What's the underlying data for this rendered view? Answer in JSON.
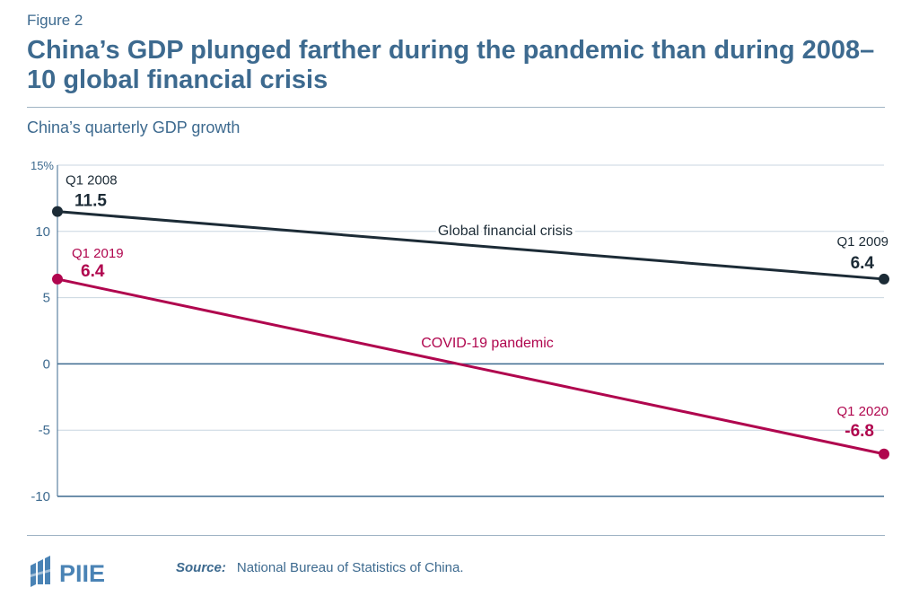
{
  "header": {
    "figure_label": "Figure 2",
    "title": "China’s GDP plunged farther during the pandemic than during 2008–10 global financial crisis",
    "subtitle": "China’s quarterly GDP growth"
  },
  "footer": {
    "logo_text": "PIIE",
    "source_label": "Source:",
    "source_text": "National Bureau of Statistics of China."
  },
  "colors": {
    "gfc": "#1c2b36",
    "covid": "#b0064e",
    "axis": "#3d6a8f",
    "grid": "#c9d6e0"
  },
  "chart_data": {
    "type": "line",
    "ylim": [
      -10,
      15
    ],
    "y_ticks": [
      "15%",
      "10",
      "5",
      "0",
      "-5",
      "-10"
    ],
    "y_tick_values": [
      15,
      10,
      5,
      0,
      -5,
      -10
    ],
    "grid": true,
    "series": [
      {
        "name": "Global financial crisis",
        "color": "#1c2b36",
        "points": [
          {
            "quarter": "Q1 2008",
            "value": 11.5,
            "value_label": "11.5"
          },
          {
            "quarter": "Q1 2009",
            "value": 6.4,
            "value_label": "6.4"
          }
        ]
      },
      {
        "name": "COVID-19 pandemic",
        "color": "#b0064e",
        "points": [
          {
            "quarter": "Q1 2019",
            "value": 6.4,
            "value_label": "6.4"
          },
          {
            "quarter": "Q1 2020",
            "value": -6.8,
            "value_label": "-6.8"
          }
        ]
      }
    ]
  }
}
